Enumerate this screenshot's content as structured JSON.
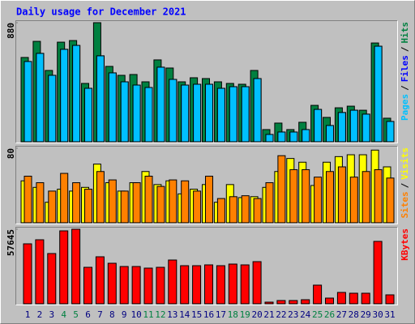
{
  "title": "Daily usage for December 2021",
  "chart_data": [
    {
      "type": "bar",
      "legend_separator": "/",
      "categories": [
        "1",
        "2",
        "3",
        "4",
        "5",
        "6",
        "7",
        "8",
        "9",
        "10",
        "11",
        "12",
        "13",
        "14",
        "15",
        "16",
        "17",
        "18",
        "19",
        "20",
        "21",
        "22",
        "23",
        "24",
        "25",
        "26",
        "27",
        "28",
        "29",
        "30",
        "31"
      ],
      "highlight_categories": [
        "4",
        "5",
        "11",
        "12",
        "18",
        "19",
        "25",
        "26"
      ],
      "highlight_color": "#008040",
      "label_color": "#000080",
      "ylim": [
        0,
        880
      ],
      "yticks": [
        880
      ],
      "series": [
        {
          "name": "Hits",
          "color": "#008040",
          "values": [
            623,
            742,
            527,
            736,
            748,
            431,
            880,
            557,
            491,
            497,
            443,
            605,
            545,
            443,
            473,
            467,
            443,
            431,
            425,
            527,
            90,
            138,
            90,
            144,
            269,
            180,
            251,
            263,
            233,
            730,
            174
          ]
        },
        {
          "name": "Files",
          "color": "#0000ff",
          "values": [
            593,
            653,
            491,
            683,
            712,
            395,
            635,
            509,
            443,
            419,
            401,
            551,
            461,
            419,
            425,
            425,
            395,
            407,
            407,
            467,
            54,
            72,
            72,
            90,
            239,
            120,
            216,
            233,
            204,
            706,
            150
          ]
        },
        {
          "name": "Pages",
          "color": "#00c0ff",
          "values": [
            593,
            653,
            491,
            683,
            712,
            395,
            635,
            509,
            443,
            419,
            401,
            551,
            461,
            419,
            425,
            425,
            395,
            407,
            407,
            467,
            54,
            72,
            72,
            90,
            239,
            120,
            216,
            233,
            204,
            706,
            150
          ]
        }
      ]
    },
    {
      "type": "bar",
      "legend_separator": "/",
      "categories": [
        "1",
        "2",
        "3",
        "4",
        "5",
        "6",
        "7",
        "8",
        "9",
        "10",
        "11",
        "12",
        "13",
        "14",
        "15",
        "16",
        "17",
        "18",
        "19",
        "20",
        "21",
        "22",
        "23",
        "24",
        "25",
        "26",
        "27",
        "28",
        "29",
        "30",
        "31"
      ],
      "ylim": [
        0,
        80
      ],
      "yticks": [
        80
      ],
      "series": [
        {
          "name": "Visits",
          "color": "#ffff00",
          "values": [
            45,
            38,
            22,
            36,
            34,
            38,
            63,
            43,
            34,
            43,
            55,
            41,
            45,
            31,
            36,
            41,
            22,
            41,
            27,
            28,
            38,
            55,
            69,
            65,
            40,
            65,
            71,
            73,
            73,
            78,
            60
          ]
        },
        {
          "name": "Sites",
          "color": "#ff8000",
          "values": [
            50,
            43,
            34,
            53,
            43,
            36,
            55,
            46,
            34,
            43,
            50,
            39,
            46,
            45,
            34,
            50,
            26,
            28,
            29,
            26,
            43,
            72,
            57,
            57,
            49,
            55,
            60,
            49,
            55,
            57,
            48
          ]
        }
      ]
    },
    {
      "type": "bar",
      "legend_separator": "/",
      "categories": [
        "1",
        "2",
        "3",
        "4",
        "5",
        "6",
        "7",
        "8",
        "9",
        "10",
        "11",
        "12",
        "13",
        "14",
        "15",
        "16",
        "17",
        "18",
        "19",
        "20",
        "21",
        "22",
        "23",
        "24",
        "25",
        "26",
        "27",
        "28",
        "29",
        "30",
        "31"
      ],
      "ylim": [
        0,
        57645
      ],
      "yticks": [
        57645
      ],
      "series": [
        {
          "name": "KBytes",
          "color": "#ff0000",
          "values": [
            46367,
            49500,
            38848,
            56392,
            57645,
            28196,
            36342,
            31330,
            28823,
            28823,
            27570,
            28196,
            33835,
            29449,
            29449,
            30076,
            29449,
            30703,
            30076,
            32582,
            1253,
            2506,
            2506,
            3133,
            14411,
            4386,
            8772,
            8145,
            8145,
            48246,
            6892
          ]
        }
      ]
    }
  ]
}
